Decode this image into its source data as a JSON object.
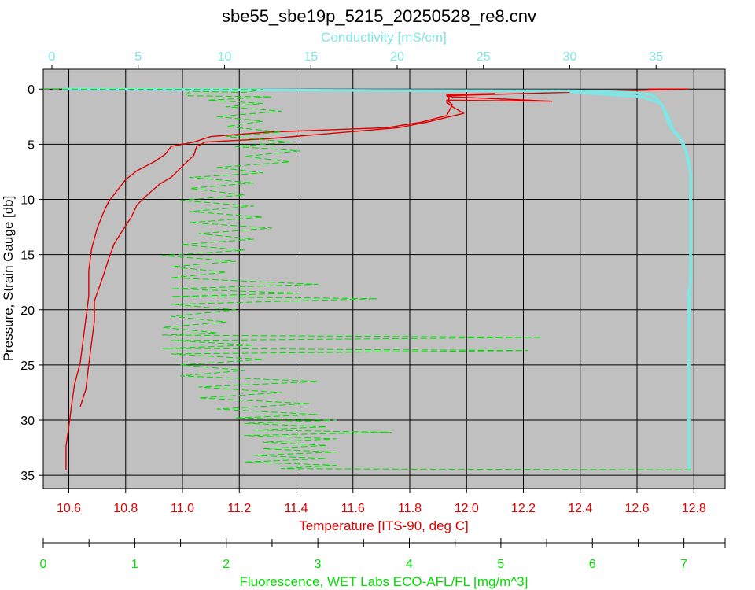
{
  "chart_data": {
    "type": "line",
    "title": "sbe55_sbe19p_5215_20250528_re8.cnv",
    "grid": true,
    "axes": {
      "pressure": {
        "label": "Pressure, Strain Gauge [db]",
        "range": [
          -1.8,
          36.2
        ],
        "ticks": [
          0,
          5,
          10,
          15,
          20,
          25,
          30,
          35
        ],
        "tick_labels": [
          "0",
          "5",
          "10",
          "15",
          "20",
          "25",
          "30",
          "35"
        ],
        "inverted": true,
        "color": "#000000"
      },
      "conductivity": {
        "label": "Conductivity [mS/cm]",
        "range": [
          -0.5,
          39.0
        ],
        "ticks": [
          0,
          5,
          10,
          15,
          20,
          25,
          30,
          35
        ],
        "tick_labels": [
          "0",
          "5",
          "10",
          "15",
          "20",
          "25",
          "30",
          "35"
        ],
        "color": "#7fe5e5"
      },
      "temperature": {
        "label": "Temperature [ITS-90, deg C]",
        "range": [
          10.51,
          12.91
        ],
        "ticks": [
          10.6,
          10.8,
          11.0,
          11.2,
          11.4,
          11.6,
          11.8,
          12.0,
          12.2,
          12.4,
          12.6,
          12.8
        ],
        "tick_labels": [
          "10.6",
          "10.8",
          "11.0",
          "11.2",
          "11.4",
          "11.6",
          "11.8",
          "12.0",
          "12.2",
          "12.4",
          "12.6",
          "12.8"
        ],
        "color": "#dd0000"
      },
      "fluorescence": {
        "label": "Fluorescence, WET Labs ECO-AFL/FL [mg/m^3]",
        "range": [
          0,
          7.45
        ],
        "ticks": [
          0,
          1,
          2,
          3,
          4,
          5,
          6,
          7
        ],
        "tick_labels": [
          "0",
          "1",
          "2",
          "3",
          "4",
          "5",
          "6",
          "7"
        ],
        "color": "#00dd00"
      }
    },
    "series": [
      {
        "name": "Temperature [ITS-90, deg C]",
        "axis": "temperature",
        "color": "#dd0000",
        "points": [
          [
            12.64,
            0.0
          ],
          [
            12.78,
            0.0
          ],
          [
            11.93,
            0.6
          ],
          [
            11.95,
            0.7
          ],
          [
            12.3,
            1.1
          ],
          [
            11.93,
            1.0
          ],
          [
            11.95,
            1.4
          ],
          [
            11.93,
            2.4
          ],
          [
            11.84,
            3.0
          ],
          [
            11.72,
            3.5
          ],
          [
            11.3,
            3.9
          ],
          [
            11.1,
            4.3
          ],
          [
            11.04,
            4.8
          ],
          [
            10.96,
            5.2
          ],
          [
            10.94,
            5.9
          ],
          [
            10.9,
            6.6
          ],
          [
            10.84,
            7.4
          ],
          [
            10.8,
            8.2
          ],
          [
            10.77,
            9.2
          ],
          [
            10.74,
            10.2
          ],
          [
            10.72,
            11.3
          ],
          [
            10.7,
            12.6
          ],
          [
            10.68,
            14.5
          ],
          [
            10.67,
            16.5
          ],
          [
            10.67,
            18.8
          ],
          [
            10.66,
            20.8
          ],
          [
            10.65,
            22.8
          ],
          [
            10.64,
            24.8
          ],
          [
            10.62,
            26.8
          ],
          [
            10.61,
            28.6
          ],
          [
            10.6,
            30.6
          ],
          [
            10.59,
            32.4
          ],
          [
            10.59,
            34.5
          ]
        ]
      },
      {
        "name": "Temperature [ITS-90, deg C]",
        "axis": "temperature",
        "color": "#dd0000",
        "points": [
          [
            10.64,
            28.8
          ],
          [
            10.66,
            27.2
          ],
          [
            10.67,
            25.0
          ],
          [
            10.68,
            23.0
          ],
          [
            10.69,
            21.0
          ],
          [
            10.69,
            19.2
          ],
          [
            10.72,
            17.0
          ],
          [
            10.74,
            15.4
          ],
          [
            10.76,
            14.0
          ],
          [
            10.79,
            12.8
          ],
          [
            10.82,
            11.6
          ],
          [
            10.84,
            10.5
          ],
          [
            10.88,
            9.5
          ],
          [
            10.92,
            8.6
          ],
          [
            10.96,
            8.0
          ],
          [
            11.0,
            7.0
          ],
          [
            11.04,
            6.0
          ],
          [
            11.05,
            5.2
          ],
          [
            11.08,
            4.8
          ],
          [
            11.3,
            4.5
          ],
          [
            11.76,
            3.5
          ],
          [
            11.86,
            3.0
          ],
          [
            11.99,
            2.2
          ],
          [
            11.95,
            1.6
          ],
          [
            11.93,
            1.2
          ],
          [
            11.94,
            0.8
          ],
          [
            11.93,
            0.5
          ],
          [
            12.1,
            0.4
          ]
        ]
      },
      {
        "name": "Conductivity [mS/cm]",
        "axis": "conductivity",
        "color": "#7fe5e5",
        "thick": true,
        "points": [
          [
            0.6,
            0.0
          ],
          [
            15.0,
            0.1
          ],
          [
            30.0,
            0.15
          ],
          [
            33.5,
            0.3
          ],
          [
            34.7,
            0.5
          ],
          [
            35.0,
            0.8
          ],
          [
            35.4,
            1.6
          ],
          [
            35.6,
            2.6
          ],
          [
            35.9,
            3.6
          ],
          [
            36.3,
            4.2
          ],
          [
            36.6,
            5.0
          ],
          [
            36.9,
            6.5
          ],
          [
            37.0,
            7.8
          ],
          [
            37.0,
            12.0
          ],
          [
            37.0,
            17.4
          ],
          [
            36.9,
            18.5
          ],
          [
            36.9,
            25.0
          ],
          [
            36.9,
            30.0
          ],
          [
            36.9,
            34.5
          ]
        ]
      },
      {
        "name": "Conductivity [mS/cm]",
        "axis": "conductivity",
        "color": "#7fe5e5",
        "thick": true,
        "points": [
          [
            36.9,
            34.0
          ],
          [
            36.9,
            28.0
          ],
          [
            36.9,
            22.0
          ],
          [
            37.0,
            16.0
          ],
          [
            37.0,
            10.0
          ],
          [
            37.0,
            7.6
          ],
          [
            36.7,
            5.5
          ],
          [
            36.4,
            4.5
          ],
          [
            36.0,
            3.8
          ],
          [
            35.7,
            2.5
          ],
          [
            35.3,
            1.3
          ],
          [
            34.2,
            0.7
          ],
          [
            30.0,
            0.25
          ]
        ]
      },
      {
        "name": "Fluorescence, WET Labs ECO-AFL/FL [mg/m^3]",
        "axis": "fluorescence",
        "color": "#00dd00",
        "dashed": true,
        "points": [
          [
            0.0,
            0.0
          ],
          [
            2.4,
            0.05
          ],
          [
            2.2,
            0.3
          ],
          [
            1.6,
            0.2
          ],
          [
            1.55,
            0.6
          ],
          [
            2.5,
            0.7
          ],
          [
            1.8,
            1.0
          ],
          [
            2.4,
            1.3
          ],
          [
            2.0,
            1.6
          ],
          [
            2.6,
            2.0
          ],
          [
            1.9,
            2.5
          ],
          [
            2.4,
            2.9
          ],
          [
            2.0,
            3.4
          ],
          [
            2.6,
            3.9
          ],
          [
            2.0,
            4.3
          ],
          [
            2.7,
            4.8
          ],
          [
            2.1,
            5.2
          ],
          [
            2.8,
            5.6
          ],
          [
            2.2,
            6.1
          ],
          [
            2.7,
            6.6
          ],
          [
            1.9,
            7.1
          ],
          [
            2.4,
            7.6
          ],
          [
            1.6,
            8.0
          ],
          [
            2.3,
            8.5
          ],
          [
            1.6,
            9.0
          ],
          [
            2.2,
            9.6
          ],
          [
            1.5,
            10.1
          ],
          [
            2.3,
            10.6
          ],
          [
            1.6,
            11.1
          ],
          [
            2.4,
            11.6
          ],
          [
            1.6,
            12.1
          ],
          [
            2.5,
            12.6
          ],
          [
            1.7,
            13.1
          ],
          [
            2.3,
            13.6
          ],
          [
            1.5,
            14.1
          ],
          [
            2.2,
            14.6
          ],
          [
            1.3,
            15.1
          ],
          [
            2.1,
            15.6
          ],
          [
            1.4,
            16.1
          ],
          [
            2.0,
            16.6
          ],
          [
            1.4,
            17.1
          ],
          [
            3.0,
            17.7
          ],
          [
            1.4,
            18.1
          ],
          [
            2.8,
            18.5
          ],
          [
            1.4,
            18.8
          ],
          [
            3.65,
            19.0
          ],
          [
            1.4,
            19.5
          ],
          [
            2.1,
            20.0
          ],
          [
            1.4,
            20.6
          ],
          [
            2.0,
            21.1
          ],
          [
            1.3,
            21.6
          ],
          [
            1.9,
            22.1
          ],
          [
            1.3,
            22.3
          ],
          [
            5.45,
            22.5
          ],
          [
            1.4,
            22.8
          ],
          [
            2.3,
            23.2
          ],
          [
            1.3,
            23.5
          ],
          [
            5.3,
            23.7
          ],
          [
            1.4,
            24.0
          ],
          [
            2.4,
            24.5
          ],
          [
            1.5,
            25.0
          ],
          [
            2.2,
            25.5
          ],
          [
            1.5,
            26.0
          ],
          [
            3.0,
            26.5
          ],
          [
            1.7,
            27.0
          ],
          [
            2.6,
            27.5
          ],
          [
            1.7,
            28.0
          ],
          [
            2.9,
            28.5
          ],
          [
            1.9,
            29.0
          ],
          [
            3.0,
            29.5
          ],
          [
            2.1,
            29.8
          ],
          [
            3.2,
            30.0
          ],
          [
            2.2,
            30.3
          ],
          [
            3.1,
            30.6
          ],
          [
            2.3,
            30.9
          ],
          [
            3.8,
            31.1
          ],
          [
            2.2,
            31.4
          ],
          [
            3.2,
            31.7
          ],
          [
            2.4,
            32.0
          ],
          [
            3.1,
            32.3
          ],
          [
            2.4,
            32.6
          ],
          [
            3.2,
            32.9
          ],
          [
            2.3,
            33.2
          ],
          [
            3.1,
            33.5
          ],
          [
            2.2,
            33.8
          ],
          [
            3.2,
            34.1
          ],
          [
            2.6,
            34.4
          ],
          [
            7.1,
            34.5
          ]
        ]
      }
    ]
  }
}
